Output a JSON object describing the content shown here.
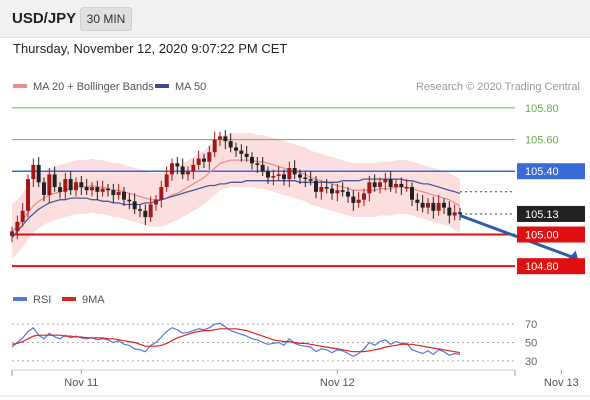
{
  "header": {
    "symbol": "USD/JPY",
    "interval": "30 MIN"
  },
  "datetime": "Thursday, November 12, 2020 9:07:22 PM CET",
  "legend": {
    "ma20_bb": "MA 20 + Bollinger Bands",
    "ma50": "MA 50"
  },
  "copyright": "Research © 2020 Trading Central",
  "rsi_legend": {
    "rsi": "RSI",
    "ma": "9MA"
  },
  "colors": {
    "up": "#a01818",
    "down": "#222222",
    "ma20": "#e89090",
    "band": "#fbd8d8",
    "ma50": "#4a5a9a",
    "support": "#e01010",
    "resistance": "#3a6ad8",
    "green": "#6ab04a",
    "rsi": "#5577dd",
    "rsi_ma": "#dd2222",
    "arrow": "#2a5ca8"
  },
  "chart_data": [
    {
      "type": "line",
      "ylim": [
        104.7,
        105.85
      ],
      "x_ticks": [
        {
          "label": "Nov 11",
          "index": 13
        },
        {
          "label": "Nov 12",
          "index": 61
        },
        {
          "label": "Nov 13",
          "index": 103
        }
      ],
      "levels": [
        {
          "label": "105.80",
          "value": 105.8,
          "style": "green"
        },
        {
          "label": "105.60",
          "value": 105.6,
          "style": "green"
        },
        {
          "label": "105.40",
          "value": 105.4,
          "style": "resistance"
        },
        {
          "label": "105.13",
          "value": 105.13,
          "style": "last"
        },
        {
          "label": "105.00",
          "value": 105.0,
          "style": "support"
        },
        {
          "label": "104.80",
          "value": 104.8,
          "style": "support"
        }
      ],
      "forecast_arrow": {
        "from": [
          105.12,
          0
        ],
        "to": [
          104.81,
          14
        ]
      },
      "close": [
        105.02,
        105.08,
        105.15,
        105.35,
        105.44,
        105.33,
        105.25,
        105.38,
        105.3,
        105.27,
        105.35,
        105.28,
        105.33,
        105.3,
        105.28,
        105.3,
        105.27,
        105.29,
        105.28,
        105.25,
        105.27,
        105.22,
        105.21,
        105.16,
        105.15,
        105.11,
        105.19,
        105.22,
        105.3,
        105.38,
        105.45,
        105.43,
        105.38,
        105.4,
        105.44,
        105.48,
        105.46,
        105.52,
        105.6,
        105.62,
        105.59,
        105.55,
        105.53,
        105.51,
        105.49,
        105.45,
        105.44,
        105.4,
        105.36,
        105.37,
        105.38,
        105.35,
        105.42,
        105.38,
        105.36,
        105.35,
        105.34,
        105.27,
        105.3,
        105.29,
        105.26,
        105.28,
        105.27,
        105.24,
        105.2,
        105.22,
        105.26,
        105.33,
        105.3,
        105.33,
        105.35,
        105.3,
        105.32,
        105.3,
        105.3,
        105.22,
        105.2,
        105.17,
        105.2,
        105.15,
        105.2,
        105.17,
        105.12,
        105.14,
        105.13
      ],
      "ma20": [
        105.02,
        105.05,
        105.09,
        105.14,
        105.18,
        105.21,
        105.23,
        105.25,
        105.26,
        105.27,
        105.28,
        105.29,
        105.3,
        105.3,
        105.3,
        105.31,
        105.3,
        105.3,
        105.29,
        105.28,
        105.28,
        105.27,
        105.26,
        105.25,
        105.24,
        105.23,
        105.22,
        105.22,
        105.22,
        105.23,
        105.25,
        105.26,
        105.28,
        105.3,
        105.32,
        105.34,
        105.36,
        105.39,
        105.42,
        105.45,
        105.46,
        105.47,
        105.47,
        105.47,
        105.47,
        105.47,
        105.46,
        105.46,
        105.45,
        105.44,
        105.43,
        105.42,
        105.41,
        105.4,
        105.39,
        105.38,
        105.36,
        105.35,
        105.34,
        105.33,
        105.32,
        105.31,
        105.3,
        105.29,
        105.28,
        105.28,
        105.28,
        105.28,
        105.28,
        105.29,
        105.29,
        105.29,
        105.3,
        105.3,
        105.3,
        105.29,
        105.28,
        105.27,
        105.26,
        105.25,
        105.24,
        105.23,
        105.22,
        105.2,
        105.18
      ],
      "ma50": [
        104.98,
        105.02,
        105.06,
        105.1,
        105.13,
        105.16,
        105.18,
        105.2,
        105.21,
        105.22,
        105.22,
        105.23,
        105.23,
        105.23,
        105.23,
        105.22,
        105.22,
        105.21,
        105.21,
        105.2,
        105.2,
        105.19,
        105.19,
        105.19,
        105.19,
        105.2,
        105.2,
        105.21,
        105.22,
        105.23,
        105.24,
        105.25,
        105.26,
        105.27,
        105.28,
        105.29,
        105.3,
        105.31,
        105.31,
        105.32,
        105.32,
        105.33,
        105.33,
        105.33,
        105.34,
        105.34,
        105.34,
        105.34,
        105.34,
        105.34,
        105.34,
        105.34,
        105.34,
        105.34,
        105.33,
        105.33,
        105.33,
        105.33,
        105.33,
        105.33,
        105.33,
        105.33,
        105.34,
        105.34,
        105.34,
        105.34,
        105.35,
        105.35,
        105.35,
        105.35,
        105.35,
        105.35,
        105.35,
        105.35,
        105.34,
        105.34,
        105.33,
        105.32,
        105.32,
        105.31,
        105.3,
        105.29,
        105.28,
        105.27,
        105.26
      ],
      "band_width": 0.17
    },
    {
      "type": "line",
      "ylim": [
        20,
        80
      ],
      "yticks": [
        {
          "label": "70",
          "value": 70
        },
        {
          "label": "50",
          "value": 50
        },
        {
          "label": "30",
          "value": 30
        }
      ],
      "rsi": [
        45,
        50,
        55,
        62,
        66,
        58,
        54,
        60,
        56,
        54,
        58,
        55,
        57,
        55,
        54,
        55,
        53,
        54,
        53,
        50,
        52,
        48,
        47,
        43,
        42,
        40,
        47,
        50,
        56,
        62,
        66,
        64,
        60,
        61,
        63,
        65,
        64,
        66,
        70,
        71,
        67,
        63,
        61,
        59,
        57,
        54,
        53,
        50,
        48,
        49,
        50,
        47,
        54,
        49,
        47,
        46,
        45,
        40,
        43,
        42,
        39,
        42,
        41,
        38,
        35,
        38,
        43,
        50,
        47,
        51,
        53,
        48,
        51,
        49,
        49,
        42,
        40,
        38,
        41,
        37,
        42,
        40,
        36,
        38,
        37
      ],
      "rsi_ma": [
        48,
        49,
        51,
        54,
        57,
        58,
        58,
        58,
        58,
        58,
        57,
        57,
        56,
        56,
        55,
        55,
        55,
        55,
        54,
        54,
        53,
        52,
        51,
        50,
        48,
        46,
        46,
        46,
        47,
        49,
        52,
        55,
        57,
        59,
        61,
        62,
        63,
        63,
        64,
        65,
        65,
        65,
        65,
        64,
        63,
        61,
        59,
        57,
        55,
        53,
        52,
        51,
        51,
        50,
        49,
        49,
        48,
        47,
        46,
        45,
        44,
        43,
        42,
        41,
        40,
        40,
        40,
        41,
        42,
        43,
        45,
        46,
        47,
        48,
        48,
        48,
        47,
        46,
        45,
        44,
        43,
        42,
        41,
        40,
        39
      ]
    }
  ]
}
